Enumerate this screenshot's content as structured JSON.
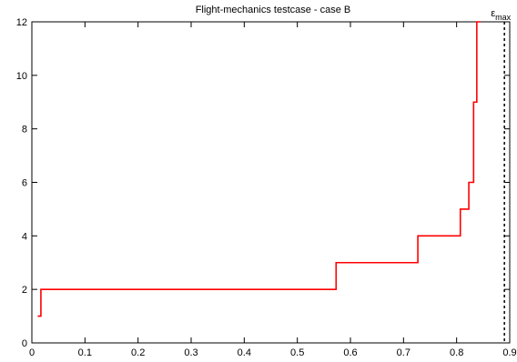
{
  "chart_data": {
    "type": "line",
    "title": "Flight-mechanics testcase - case B",
    "xlabel": "",
    "ylabel": "",
    "xlim": [
      0,
      0.9
    ],
    "ylim": [
      0,
      12
    ],
    "x_ticks": [
      "0",
      "0.1",
      "0.2",
      "0.3",
      "0.4",
      "0.5",
      "0.6",
      "0.7",
      "0.8",
      "0.9"
    ],
    "y_ticks": [
      "0",
      "2",
      "4",
      "6",
      "8",
      "10",
      "12"
    ],
    "grid": false,
    "step": "post",
    "series": [
      {
        "color": "#ff0000",
        "x": [
          0.011,
          0.017,
          0.573,
          0.727,
          0.807,
          0.823,
          0.832,
          0.838,
          0.845
        ],
        "y": [
          1,
          2,
          3,
          4,
          5,
          6,
          9,
          12,
          12
        ]
      }
    ],
    "annotations": [
      {
        "text": "ε",
        "subscript": "max",
        "x": 0.89,
        "style": "dashed vertical line"
      }
    ]
  }
}
